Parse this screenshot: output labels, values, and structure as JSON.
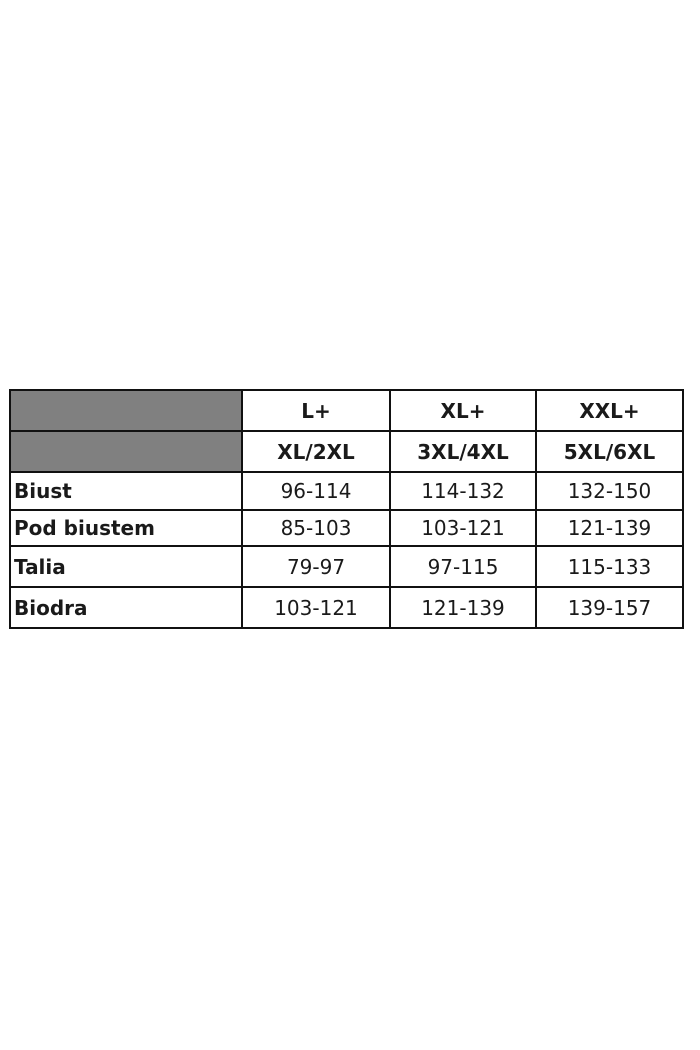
{
  "table": {
    "header_row_1": [
      "L+",
      "XL+",
      "XXL+"
    ],
    "header_row_2": [
      "XL/2XL",
      "3XL/4XL",
      "5XL/6XL"
    ],
    "rows": [
      {
        "label": "Biust",
        "values": [
          "96-114",
          "114-132",
          "132-150"
        ]
      },
      {
        "label": "Pod biustem",
        "values": [
          "85-103",
          "103-121",
          "121-139"
        ]
      },
      {
        "label": "Talia",
        "values": [
          "79-97",
          "97-115",
          "115-133"
        ]
      },
      {
        "label": "Biodra",
        "values": [
          "103-121",
          "121-139",
          "139-157"
        ]
      }
    ],
    "header_fill_color": "#808080"
  }
}
